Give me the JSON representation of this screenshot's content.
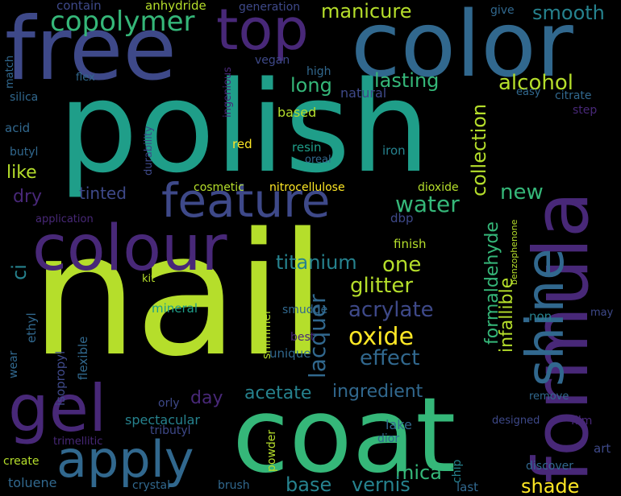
{
  "palette": {
    "lime": "#b5de2b",
    "green": "#35b779",
    "teal": "#1f9e89",
    "cyan": "#26828e",
    "blue": "#31688e",
    "indigo": "#3e4989",
    "purple": "#482878",
    "dark": "#440154",
    "yellow": "#fde725"
  },
  "words": [
    "nail",
    "polish",
    "coat",
    "free",
    "color",
    "colour",
    "formula",
    "shine",
    "top",
    "gel",
    "apply",
    "feature",
    "copolymer",
    "manicure",
    "smooth",
    "alcohol",
    "lasting",
    "long",
    "collection",
    "water",
    "new",
    "formaldehyde",
    "titanium",
    "one",
    "glitter",
    "acrylate",
    "oxide",
    "effect",
    "lacquer",
    "infallible",
    "acetate",
    "ingredient",
    "day",
    "tinted",
    "like",
    "dry",
    "ci",
    "mica",
    "shade",
    "vernis",
    "base",
    "spectacular",
    "contain",
    "anhydride",
    "generation",
    "give",
    "match",
    "vegan",
    "flex",
    "high",
    "natural",
    "easy",
    "citrate",
    "step",
    "silica",
    "ingenious",
    "based",
    "acid",
    "butyl",
    "red",
    "resin",
    "iron",
    "durability",
    "oreal",
    "cosmetic",
    "nitrocellulose",
    "dioxide",
    "dbp",
    "application",
    "benzophenone",
    "finish",
    "kit",
    "mineral",
    "smudge",
    "shimmer",
    "best",
    "unique",
    "non",
    "may",
    "ethyl",
    "isopropyl",
    "flexible",
    "wear",
    "orly",
    "tributyl",
    "trimellitic",
    "lake",
    "chip",
    "powder",
    "designed",
    "film",
    "remove",
    "art",
    "dior",
    "create",
    "discover",
    "toluene",
    "crystal",
    "brush",
    "last"
  ]
}
